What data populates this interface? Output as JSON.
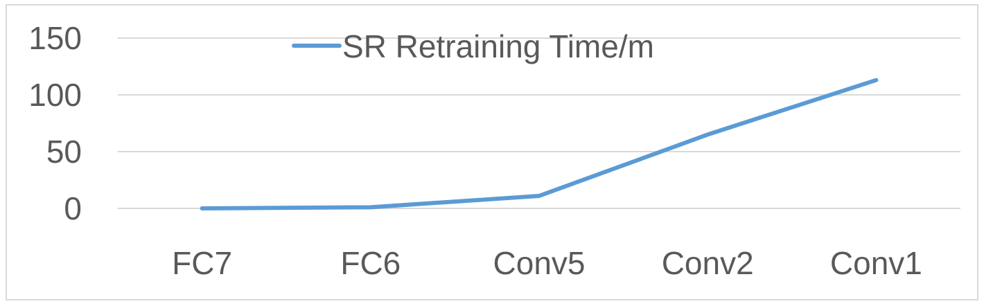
{
  "chart_data": {
    "type": "line",
    "categories": [
      "FC7",
      "FC6",
      "Conv5",
      "Conv2",
      "Conv1"
    ],
    "series": [
      {
        "name": "SR Retraining Time/m",
        "values": [
          0,
          1,
          11,
          65,
          113
        ],
        "color": "#5b9bd5"
      }
    ],
    "ylim": [
      0,
      150
    ],
    "yticks": [
      0,
      50,
      100,
      150
    ],
    "grid": true,
    "legend": "top-center",
    "title": "",
    "xlabel": "",
    "ylabel": ""
  }
}
